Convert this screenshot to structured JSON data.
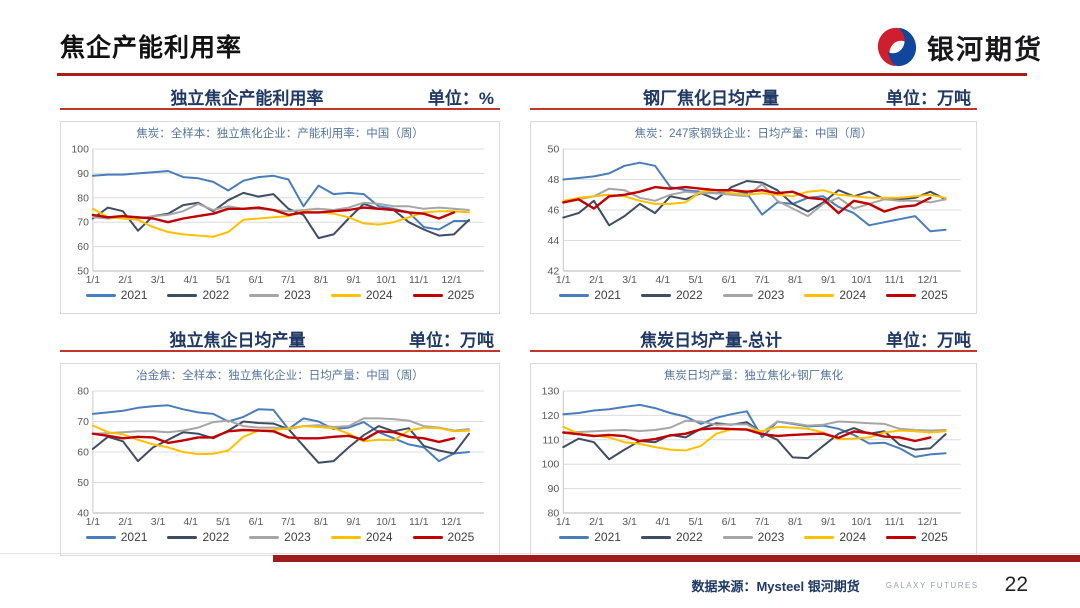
{
  "header": {
    "title": "焦企产能利用率",
    "logo_text": "银河期货"
  },
  "footer": {
    "source": "数据来源：Mysteel 银河期货",
    "brand": "GALAXY FUTURES",
    "page": "22"
  },
  "theme": {
    "heading_color": "#1f3864",
    "underline_red": "#b02318",
    "footer_bar": "#9e1b1b",
    "subtitle_color": "#55759c",
    "axis_text": "#595959"
  },
  "chart_data": [
    {
      "type": "line",
      "panel_title": "独立焦企产能利用率",
      "unit": "单位：%",
      "title": "焦炭：全样本：独立焦化企业：产能利用率：中国（周）",
      "x_note": "weekly Jan–Dec, sampled biweekly (26 pts); 2025 series ends early Dec",
      "xticks": [
        "1/1",
        "2/1",
        "3/1",
        "4/1",
        "5/1",
        "6/1",
        "7/1",
        "8/1",
        "9/1",
        "10/1",
        "11/1",
        "12/1"
      ],
      "ylim": [
        50,
        100
      ],
      "yticks": [
        50,
        60,
        70,
        80,
        90,
        100
      ],
      "grid": true,
      "legend_position": "bottom",
      "series": [
        {
          "name": "2021",
          "color": "#4a7ebb",
          "values": [
            89,
            89.5,
            89.5,
            90,
            90.5,
            91,
            88.5,
            88,
            86.5,
            83,
            87,
            88.5,
            89,
            87.5,
            76.5,
            85,
            81.5,
            82,
            81.5,
            76.5,
            75.5,
            74,
            68,
            67,
            70.5,
            70.5
          ]
        },
        {
          "name": "2022",
          "color": "#3f4d63",
          "values": [
            71.5,
            76,
            74.5,
            66.5,
            72.5,
            73.5,
            77,
            78,
            74.5,
            79,
            82,
            80.5,
            81.5,
            75.5,
            73,
            63.5,
            65,
            71.5,
            77.5,
            75.5,
            75,
            70,
            67,
            64.5,
            65,
            71
          ]
        },
        {
          "name": "2023",
          "color": "#a6a6a6",
          "values": [
            72,
            71.5,
            72,
            71.5,
            72.5,
            73,
            74.5,
            77.5,
            75,
            76.5,
            75.5,
            75.5,
            75,
            74.5,
            75,
            75.5,
            75,
            76,
            78,
            77.5,
            76.5,
            76.5,
            75.5,
            76,
            75.5,
            75
          ]
        },
        {
          "name": "2024",
          "color": "#ffc000",
          "values": [
            75.5,
            72,
            71.5,
            71,
            68,
            66,
            65,
            64.5,
            64,
            66,
            71,
            71.5,
            72,
            72.5,
            74.5,
            74,
            73.5,
            72,
            69.5,
            69,
            70,
            72,
            74,
            74.5,
            74.5,
            74
          ]
        },
        {
          "name": "2025",
          "color": "#c00000",
          "values": [
            73,
            72,
            72.5,
            72,
            71.5,
            70,
            71.5,
            72.5,
            73.5,
            75.5,
            75.5,
            76,
            75,
            73,
            74,
            74,
            74.5,
            75,
            76,
            75.5,
            75,
            74,
            73.5,
            71.5,
            74,
            null
          ]
        }
      ]
    },
    {
      "type": "line",
      "panel_title": "钢厂焦化日均产量",
      "unit": "单位：万吨",
      "title": "焦炭：247家钢铁企业：日均产量：中国（周）",
      "x_note": "weekly Jan–Dec, sampled biweekly (26 pts); 2025 series ends early Dec",
      "xticks": [
        "1/1",
        "2/1",
        "3/1",
        "4/1",
        "5/1",
        "6/1",
        "7/1",
        "8/1",
        "9/1",
        "10/1",
        "11/1",
        "12/1"
      ],
      "ylim": [
        42,
        50
      ],
      "yticks": [
        42,
        44,
        46,
        48,
        50
      ],
      "grid": true,
      "legend_position": "bottom",
      "series": [
        {
          "name": "2021",
          "color": "#4a7ebb",
          "values": [
            48,
            48.1,
            48.2,
            48.4,
            48.9,
            49.1,
            48.9,
            47.5,
            47.3,
            47.2,
            47.1,
            47.3,
            47.1,
            45.7,
            46.5,
            46.4,
            46.8,
            46.9,
            46.2,
            45.8,
            45,
            45.2,
            45.4,
            45.6,
            44.6,
            44.7
          ]
        },
        {
          "name": "2022",
          "color": "#3f4d63",
          "values": [
            45.5,
            45.8,
            46.6,
            45,
            45.6,
            46.4,
            45.8,
            46.9,
            46.7,
            47.1,
            46.7,
            47.5,
            47.9,
            47.8,
            47.3,
            46.4,
            45.9,
            46.5,
            47.3,
            46.9,
            47.2,
            46.7,
            46.7,
            46.8,
            47.2,
            46.7
          ]
        },
        {
          "name": "2023",
          "color": "#a6a6a6",
          "values": [
            46.5,
            46.7,
            46.9,
            47.4,
            47.3,
            46.8,
            46.6,
            47,
            47.2,
            47.1,
            47.1,
            47,
            46.9,
            47.7,
            46.6,
            46.1,
            45.6,
            46.4,
            46.8,
            46.1,
            46.4,
            46.7,
            46.6,
            46.6,
            46.5,
            46.7
          ]
        },
        {
          "name": "2024",
          "color": "#ffc000",
          "values": [
            46.6,
            46.8,
            46.9,
            47,
            46.9,
            46.6,
            46.4,
            46.4,
            46.5,
            47.2,
            47.3,
            47.1,
            47,
            47.1,
            47,
            46.9,
            47.2,
            47.3,
            47,
            46.9,
            46.8,
            46.8,
            46.8,
            46.9,
            47,
            46.8
          ]
        },
        {
          "name": "2025",
          "color": "#c00000",
          "values": [
            46.5,
            46.7,
            46.1,
            46.9,
            47,
            47.2,
            47.5,
            47.4,
            47.5,
            47.4,
            47.3,
            47.3,
            47.2,
            47.3,
            47.1,
            47.2,
            46.8,
            46.7,
            45.8,
            46.6,
            46.4,
            45.9,
            46.2,
            46.3,
            46.8,
            null
          ]
        }
      ]
    },
    {
      "type": "line",
      "panel_title": "独立焦企日均产量",
      "unit": "单位：万吨",
      "title": "冶金焦：全样本：独立焦化企业：日均产量：中国（周）",
      "x_note": "weekly Jan–Dec, sampled biweekly (26 pts); 2025 series ends early Dec",
      "xticks": [
        "1/1",
        "2/1",
        "3/1",
        "4/1",
        "5/1",
        "6/1",
        "7/1",
        "8/1",
        "9/1",
        "10/1",
        "11/1",
        "12/1"
      ],
      "ylim": [
        40,
        80
      ],
      "yticks": [
        40,
        50,
        60,
        70,
        80
      ],
      "grid": true,
      "legend_position": "bottom",
      "series": [
        {
          "name": "2021",
          "color": "#4a7ebb",
          "values": [
            72.5,
            73,
            73.5,
            74.5,
            75,
            75.3,
            74,
            73,
            72.5,
            70,
            71.5,
            74,
            73.8,
            67.5,
            71,
            70,
            67.5,
            68,
            69.8,
            66.5,
            64.5,
            62.5,
            61.5,
            57,
            59.5,
            60
          ]
        },
        {
          "name": "2022",
          "color": "#3f4d63",
          "values": [
            61,
            65,
            63.5,
            57,
            61.5,
            64,
            66.5,
            66,
            64.5,
            67,
            70,
            69.5,
            69.3,
            67.5,
            62,
            56.5,
            57,
            61.5,
            65.5,
            68.5,
            66.8,
            67.8,
            62,
            60.5,
            59.5,
            66
          ]
        },
        {
          "name": "2023",
          "color": "#a6a6a6",
          "values": [
            66,
            66.2,
            66.5,
            66.8,
            66.8,
            66.5,
            67,
            68,
            69.8,
            70.3,
            68.5,
            68,
            68,
            67.5,
            68.5,
            68.8,
            68.2,
            68.5,
            71,
            71,
            70.8,
            70.3,
            68.5,
            68,
            67,
            67.5
          ]
        },
        {
          "name": "2024",
          "color": "#ffc000",
          "values": [
            68.7,
            66.5,
            65.8,
            64,
            62.5,
            61.5,
            60,
            59.3,
            59.4,
            60.5,
            65,
            67,
            67.2,
            67.8,
            68.5,
            68.2,
            67.8,
            66,
            63.5,
            64,
            63.8,
            67,
            68,
            67.8,
            66.8,
            67
          ]
        },
        {
          "name": "2025",
          "color": "#c00000",
          "values": [
            66,
            65.3,
            64.5,
            65,
            64.8,
            63,
            63.8,
            64.8,
            64.8,
            66.8,
            67.2,
            67,
            66.8,
            64.8,
            64.5,
            64.5,
            65,
            65.3,
            64,
            66.8,
            66.5,
            65,
            64.5,
            63.3,
            64.5,
            null
          ]
        }
      ]
    },
    {
      "type": "line",
      "panel_title": "焦炭日均产量-总计",
      "unit": "单位：万吨",
      "title": "焦炭日均产量：独立焦化+钢厂焦化",
      "x_note": "weekly Jan–Dec, sampled biweekly (26 pts); 2025 series ends early Dec",
      "xticks": [
        "1/1",
        "2/1",
        "3/1",
        "4/1",
        "5/1",
        "6/1",
        "7/1",
        "8/1",
        "9/1",
        "10/1",
        "11/1",
        "12/1"
      ],
      "ylim": [
        80,
        130
      ],
      "yticks": [
        80,
        90,
        100,
        110,
        120,
        130
      ],
      "grid": true,
      "legend_position": "bottom",
      "series": [
        {
          "name": "2021",
          "color": "#4a7ebb",
          "values": [
            120.5,
            121,
            122,
            122.5,
            123.5,
            124.3,
            123,
            121,
            119.5,
            116.5,
            119,
            120.5,
            121.7,
            111,
            117.5,
            116.5,
            115.5,
            115.8,
            114.5,
            112,
            108.5,
            108.8,
            106.5,
            103,
            104,
            104.5
          ]
        },
        {
          "name": "2022",
          "color": "#3f4d63",
          "values": [
            107,
            110.5,
            109,
            102,
            106,
            109.5,
            109,
            112,
            111,
            114.5,
            116.8,
            116.2,
            117.2,
            112.8,
            110,
            102.8,
            102.5,
            107.5,
            112.5,
            114.8,
            112.5,
            113.5,
            108,
            106,
            106.5,
            112.3
          ]
        },
        {
          "name": "2023",
          "color": "#a6a6a6",
          "values": [
            113,
            113.2,
            113.5,
            113.8,
            114,
            113.6,
            114,
            115,
            117.8,
            117.5,
            116.2,
            116.4,
            116.3,
            113,
            117.5,
            116.8,
            115.8,
            116.2,
            117.5,
            117.2,
            116.8,
            116.5,
            114.5,
            114,
            113.8,
            114
          ]
        },
        {
          "name": "2024",
          "color": "#ffc000",
          "values": [
            115.3,
            112.5,
            111.8,
            111,
            109,
            108.3,
            107,
            106,
            105.6,
            107.5,
            112.5,
            114.3,
            114.3,
            113.5,
            115.3,
            115,
            114.5,
            113,
            110.2,
            110.5,
            111,
            113,
            113.8,
            113.5,
            113,
            113.5
          ]
        },
        {
          "name": "2025",
          "color": "#c00000",
          "values": [
            113,
            112.3,
            111.5,
            112,
            111.5,
            109.5,
            110.3,
            111.8,
            112.5,
            114.3,
            114.7,
            114.4,
            114.2,
            112.3,
            111.6,
            112,
            112.3,
            112.5,
            110.8,
            113.4,
            112.8,
            111.3,
            111,
            109.5,
            111,
            null
          ]
        }
      ]
    }
  ]
}
